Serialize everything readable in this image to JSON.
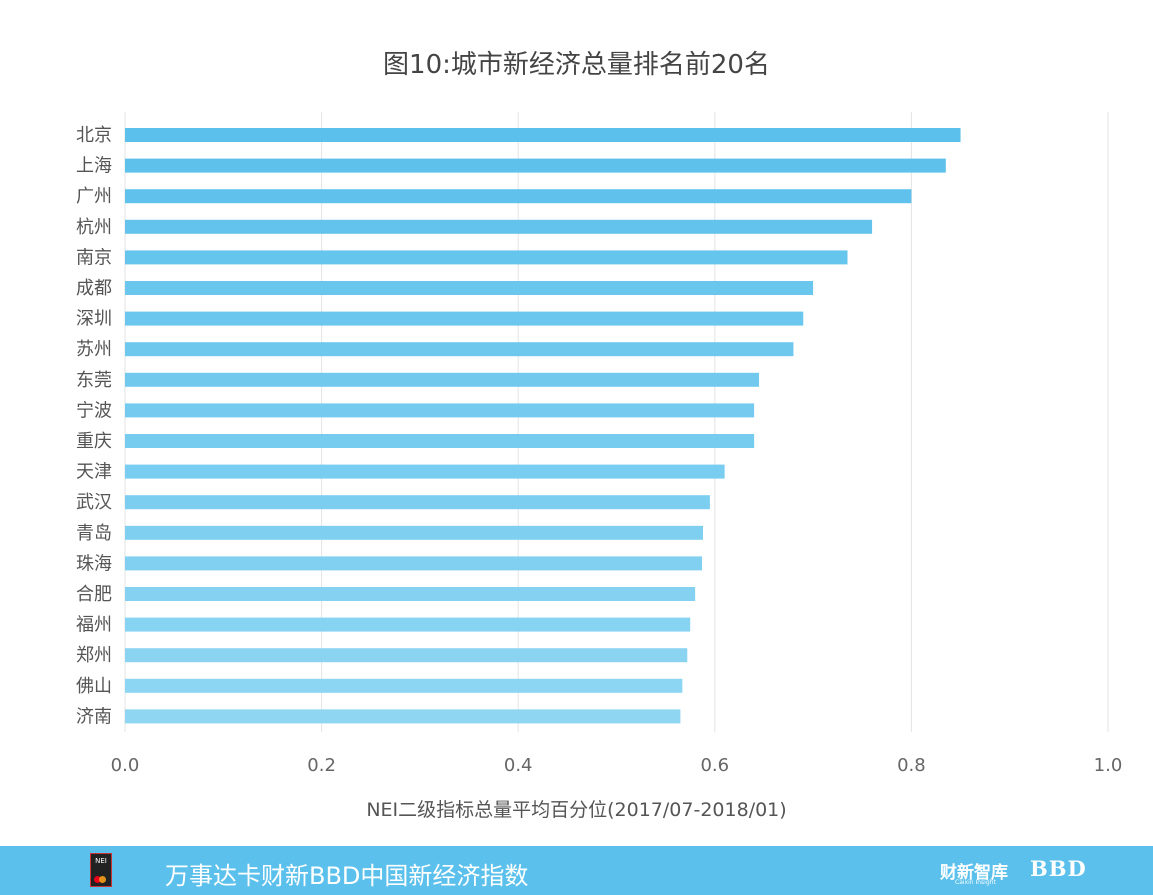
{
  "chart_data": {
    "type": "bar",
    "orientation": "horizontal",
    "title": "图10:城市新经济总量排名前20名",
    "xlabel": "NEI二级指标总量平均百分位(2017/07-2018/01)",
    "ylabel": "",
    "categories": [
      "北京",
      "上海",
      "广州",
      "杭州",
      "南京",
      "成都",
      "深圳",
      "苏州",
      "东莞",
      "宁波",
      "重庆",
      "天津",
      "武汉",
      "青岛",
      "珠海",
      "合肥",
      "福州",
      "郑州",
      "佛山",
      "济南"
    ],
    "values": [
      0.85,
      0.835,
      0.8,
      0.76,
      0.735,
      0.7,
      0.69,
      0.68,
      0.645,
      0.64,
      0.64,
      0.61,
      0.595,
      0.588,
      0.587,
      0.58,
      0.575,
      0.572,
      0.567,
      0.565
    ],
    "xlim": [
      0,
      1.0
    ],
    "xticks": [
      "0.0",
      "0.2",
      "0.4",
      "0.6",
      "0.8",
      "1.0"
    ],
    "grid": true,
    "colors": {
      "bar_top": "#5bc0eb",
      "bar_bottom": "#8fd6f3",
      "grid": "#e3e3e3"
    }
  },
  "footer": {
    "title": "万事达卡财新BBD中国新经济指数",
    "logo_text": "NEI",
    "brand1": "财新智库",
    "brand1_sub": "Caixin Insight",
    "brand2": "BBD",
    "background": "#5bc0eb"
  }
}
